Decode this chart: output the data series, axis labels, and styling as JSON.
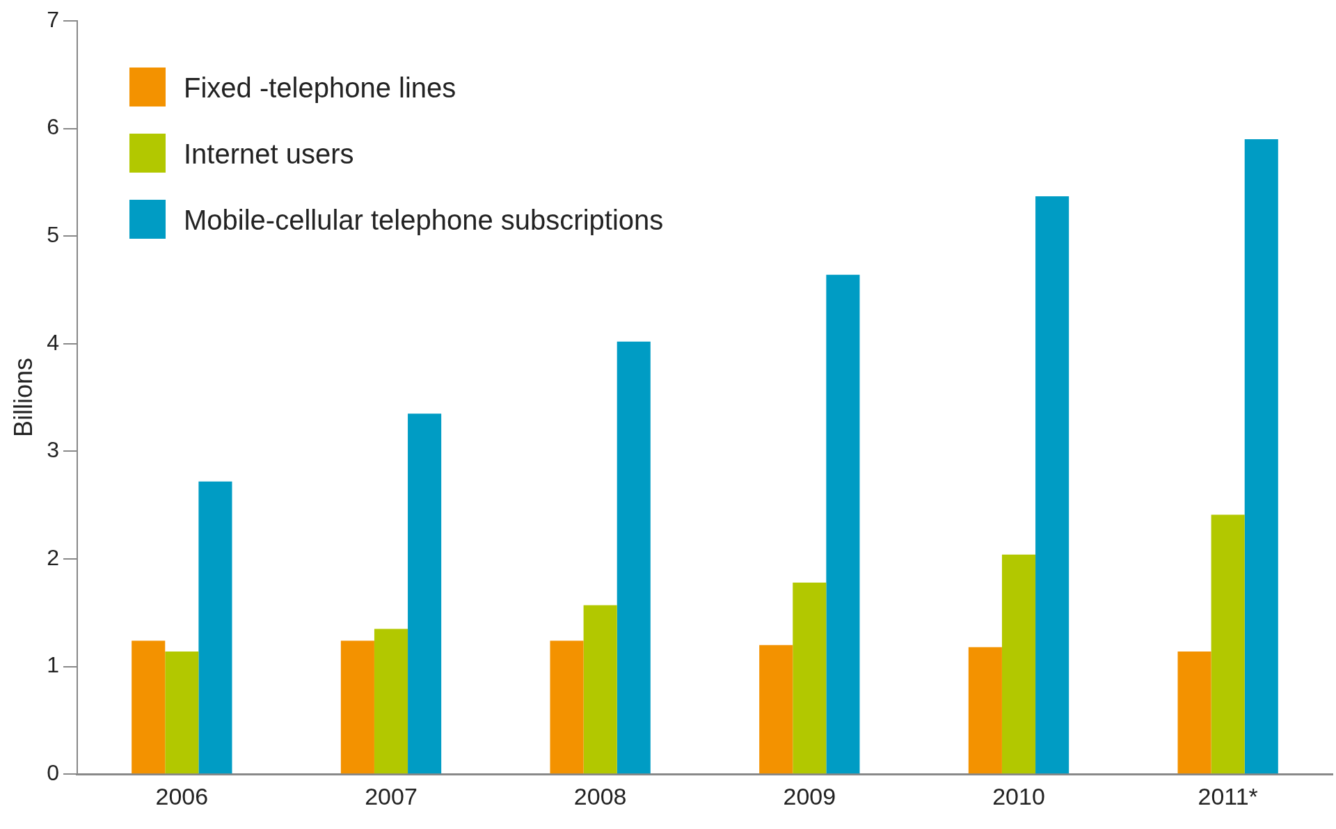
{
  "chart_data": {
    "type": "bar",
    "ylabel": "Billions",
    "categories": [
      "2006",
      "2007",
      "2008",
      "2009",
      "2010",
      "2011*"
    ],
    "series": [
      {
        "name": "Fixed -telephone lines",
        "color": "#f39200",
        "values": [
          1.24,
          1.24,
          1.24,
          1.2,
          1.18,
          1.14
        ]
      },
      {
        "name": "Internet users",
        "color": "#b2c800",
        "values": [
          1.14,
          1.35,
          1.57,
          1.78,
          2.04,
          2.41
        ]
      },
      {
        "name": "Mobile-cellular telephone subscriptions",
        "color": "#009cc4",
        "values": [
          2.72,
          3.35,
          4.02,
          4.64,
          5.37,
          5.9
        ]
      }
    ],
    "ylim": [
      0,
      7
    ],
    "yticks": [
      0,
      1,
      2,
      3,
      4,
      5,
      6,
      7
    ],
    "grid": false,
    "legend": "top left"
  }
}
